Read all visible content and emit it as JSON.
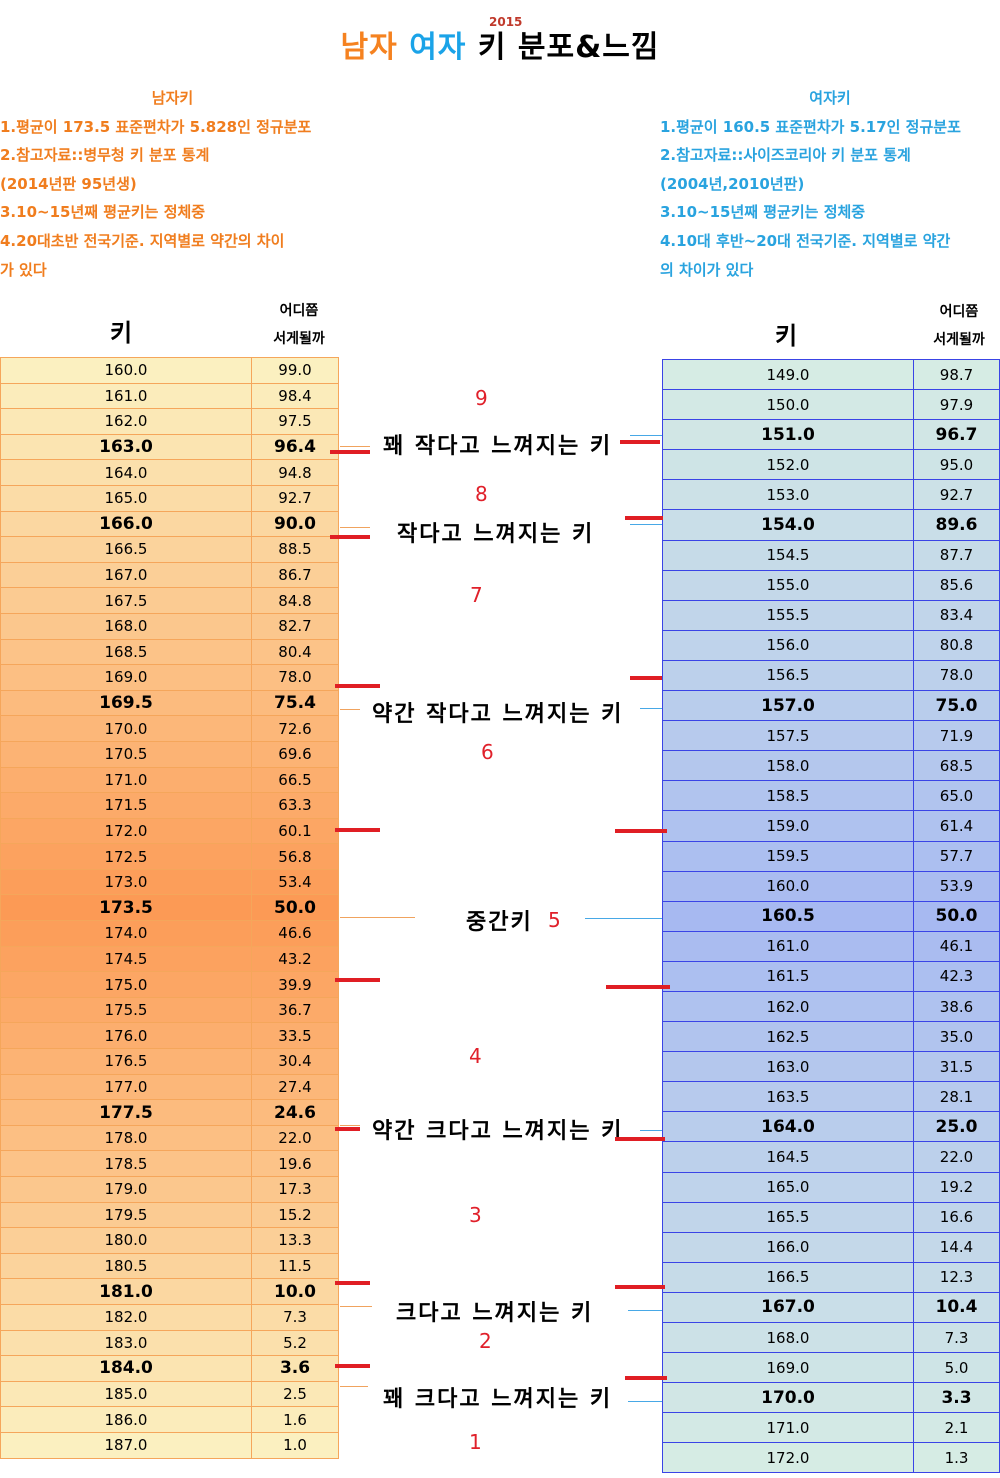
{
  "title": {
    "male": "남자",
    "female": "여자",
    "rest": "키 분포&느낌",
    "year": "2015"
  },
  "male_info": {
    "heading": "남자키",
    "lines": [
      "1.평균이 173.5 표준편차가 5.828인 정규분포",
      "2.참고자료::병무청 키 분포 통계",
      "(2014년판 95년생)",
      "3.10~15년째 평균키는 정체중",
      "4.20대초반 전국기준. 지역별로 약간의 차이",
      "가 있다"
    ]
  },
  "female_info": {
    "heading": "여자키",
    "lines": [
      "1.평균이 160.5 표준편차가 5.17인 정규분포",
      "2.참고자료::사이즈코리아 키 분포 통계",
      "(2004년,2010년판)",
      "3.10~15년째 평균키는 정체중",
      "4.10대 후반~20대 전국기준. 지역별로 약간",
      "의 차이가 있다"
    ]
  },
  "headers": {
    "height": "키",
    "where_1": "어디쯤",
    "where_2": "서게될까"
  },
  "colors": {
    "male_light": "#fbf0c0",
    "male_dark": "#fc9a55",
    "female_light": "#d6ece4",
    "female_dark": "#a7b9f1",
    "marker": "#e01e24"
  },
  "male_rows": [
    [
      "160.0",
      "99.0"
    ],
    [
      "161.0",
      "98.4"
    ],
    [
      "162.0",
      "97.5"
    ],
    [
      "163.0",
      "96.4"
    ],
    [
      "164.0",
      "94.8"
    ],
    [
      "165.0",
      "92.7"
    ],
    [
      "166.0",
      "90.0"
    ],
    [
      "166.5",
      "88.5"
    ],
    [
      "167.0",
      "86.7"
    ],
    [
      "167.5",
      "84.8"
    ],
    [
      "168.0",
      "82.7"
    ],
    [
      "168.5",
      "80.4"
    ],
    [
      "169.0",
      "78.0"
    ],
    [
      "169.5",
      "75.4"
    ],
    [
      "170.0",
      "72.6"
    ],
    [
      "170.5",
      "69.6"
    ],
    [
      "171.0",
      "66.5"
    ],
    [
      "171.5",
      "63.3"
    ],
    [
      "172.0",
      "60.1"
    ],
    [
      "172.5",
      "56.8"
    ],
    [
      "173.0",
      "53.4"
    ],
    [
      "173.5",
      "50.0"
    ],
    [
      "174.0",
      "46.6"
    ],
    [
      "174.5",
      "43.2"
    ],
    [
      "175.0",
      "39.9"
    ],
    [
      "175.5",
      "36.7"
    ],
    [
      "176.0",
      "33.5"
    ],
    [
      "176.5",
      "30.4"
    ],
    [
      "177.0",
      "27.4"
    ],
    [
      "177.5",
      "24.6"
    ],
    [
      "178.0",
      "22.0"
    ],
    [
      "178.5",
      "19.6"
    ],
    [
      "179.0",
      "17.3"
    ],
    [
      "179.5",
      "15.2"
    ],
    [
      "180.0",
      "13.3"
    ],
    [
      "180.5",
      "11.5"
    ],
    [
      "181.0",
      "10.0"
    ],
    [
      "182.0",
      "7.3"
    ],
    [
      "183.0",
      "5.2"
    ],
    [
      "184.0",
      "3.6"
    ],
    [
      "185.0",
      "2.5"
    ],
    [
      "186.0",
      "1.6"
    ],
    [
      "187.0",
      "1.0"
    ]
  ],
  "male_bold": [
    "163.0",
    "166.0",
    "169.5",
    "173.5",
    "177.5",
    "181.0",
    "184.0"
  ],
  "female_rows": [
    [
      "149.0",
      "98.7"
    ],
    [
      "150.0",
      "97.9"
    ],
    [
      "151.0",
      "96.7"
    ],
    [
      "152.0",
      "95.0"
    ],
    [
      "153.0",
      "92.7"
    ],
    [
      "154.0",
      "89.6"
    ],
    [
      "154.5",
      "87.7"
    ],
    [
      "155.0",
      "85.6"
    ],
    [
      "155.5",
      "83.4"
    ],
    [
      "156.0",
      "80.8"
    ],
    [
      "156.5",
      "78.0"
    ],
    [
      "157.0",
      "75.0"
    ],
    [
      "157.5",
      "71.9"
    ],
    [
      "158.0",
      "68.5"
    ],
    [
      "158.5",
      "65.0"
    ],
    [
      "159.0",
      "61.4"
    ],
    [
      "159.5",
      "57.7"
    ],
    [
      "160.0",
      "53.9"
    ],
    [
      "160.5",
      "50.0"
    ],
    [
      "161.0",
      "46.1"
    ],
    [
      "161.5",
      "42.3"
    ],
    [
      "162.0",
      "38.6"
    ],
    [
      "162.5",
      "35.0"
    ],
    [
      "163.0",
      "31.5"
    ],
    [
      "163.5",
      "28.1"
    ],
    [
      "164.0",
      "25.0"
    ],
    [
      "164.5",
      "22.0"
    ],
    [
      "165.0",
      "19.2"
    ],
    [
      "165.5",
      "16.6"
    ],
    [
      "166.0",
      "14.4"
    ],
    [
      "166.5",
      "12.3"
    ],
    [
      "167.0",
      "10.4"
    ],
    [
      "168.0",
      "7.3"
    ],
    [
      "169.0",
      "5.0"
    ],
    [
      "170.0",
      "3.3"
    ],
    [
      "171.0",
      "2.1"
    ],
    [
      "172.0",
      "1.3"
    ]
  ],
  "female_bold": [
    "151.0",
    "154.0",
    "157.0",
    "160.5",
    "164.0",
    "167.0",
    "170.0"
  ],
  "categories": [
    "꽤 작다고 느껴지는 키",
    "작다고 느껴지는 키",
    "약간 작다고 느껴지는 키",
    "중간키",
    "약간 크다고 느껴지는 키",
    "크다고 느껴지는 키",
    "꽤 크다고 느껴지는 키"
  ],
  "zone_numbers": [
    "9",
    "8",
    "7",
    "6",
    "5",
    "4",
    "3",
    "2",
    "1"
  ]
}
